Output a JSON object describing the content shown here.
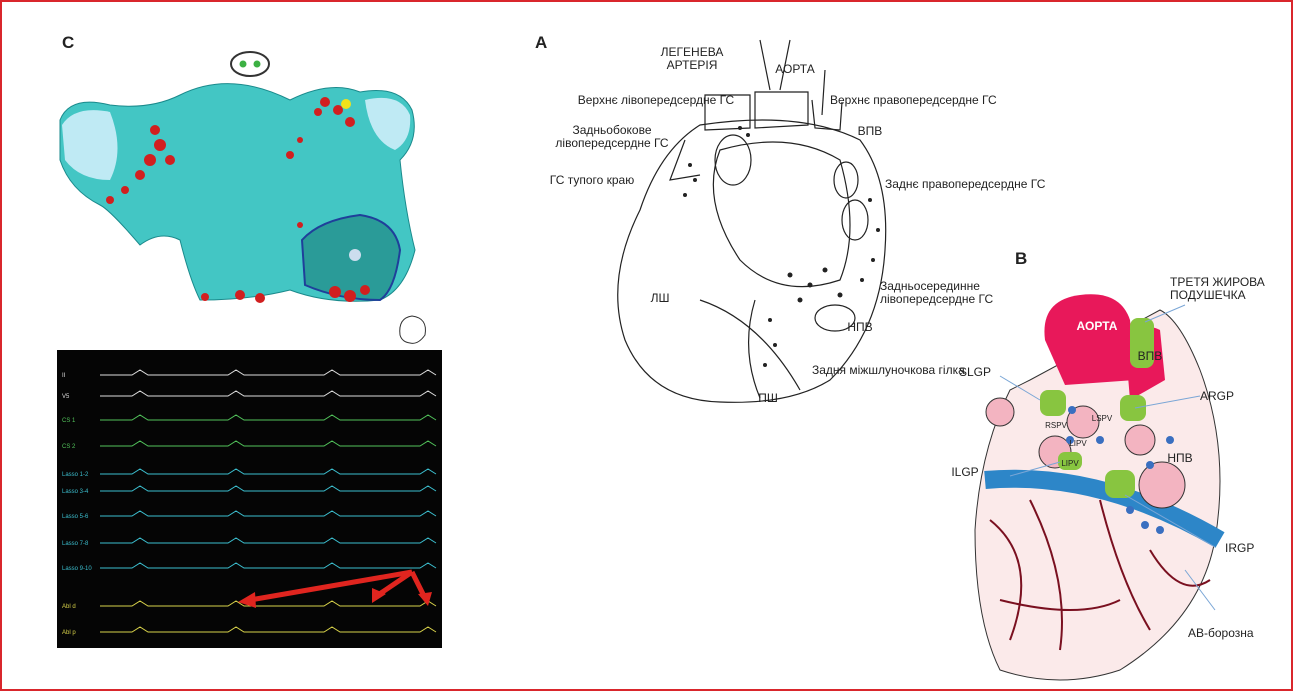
{
  "panel_c": {
    "label": "C",
    "channels": [
      "II",
      "V5",
      "CS 1",
      "CS 2",
      "Lasso 1-2",
      "Lasso 3-4",
      "Lasso 5-6",
      "Lasso 7-8",
      "Lasso 9-10",
      "Abl d",
      "Abl p"
    ]
  },
  "panel_a": {
    "label": "A",
    "labels": [
      {
        "lines": [
          "ЛЕГЕНЕВА",
          "АРТЕРІЯ"
        ]
      },
      {
        "lines": [
          "АОРТА"
        ]
      },
      {
        "lines": [
          "Верхнє лівопередсердне ГС"
        ]
      },
      {
        "lines": [
          "Верхнє правопередсердне ГС"
        ]
      },
      {
        "lines": [
          "Задньобокове",
          "лівопередсердне ГС"
        ]
      },
      {
        "lines": [
          "ВПВ"
        ]
      },
      {
        "lines": [
          "ГС тупого краю"
        ]
      },
      {
        "lines": [
          "Заднє правопередсердне ГС"
        ]
      },
      {
        "lines": [
          "ЛШ"
        ]
      },
      {
        "lines": [
          "Задньосерединне",
          "лівопередсердне ГС"
        ]
      },
      {
        "lines": [
          "НПВ"
        ]
      },
      {
        "lines": [
          "Задня міжшлуночкова гілка"
        ]
      },
      {
        "lines": [
          "ПШ"
        ]
      }
    ]
  },
  "panel_b": {
    "label": "B",
    "labels": [
      {
        "lines": [
          "ТРЕТЯ ЖИРОВА",
          "ПОДУШЕЧКА"
        ]
      },
      {
        "lines": [
          "АОРТА"
        ]
      },
      {
        "lines": [
          "ВПВ"
        ]
      },
      {
        "lines": [
          "SLGP"
        ]
      },
      {
        "lines": [
          "ARGP"
        ]
      },
      {
        "lines": [
          "RSPV"
        ]
      },
      {
        "lines": [
          "LSPV"
        ]
      },
      {
        "lines": [
          "LIPV"
        ]
      },
      {
        "lines": [
          "LIPV"
        ]
      },
      {
        "lines": [
          "НПВ"
        ]
      },
      {
        "lines": [
          "ILGP"
        ]
      },
      {
        "lines": [
          "IRGP"
        ]
      },
      {
        "lines": [
          "AB-борозна"
        ]
      }
    ]
  }
}
